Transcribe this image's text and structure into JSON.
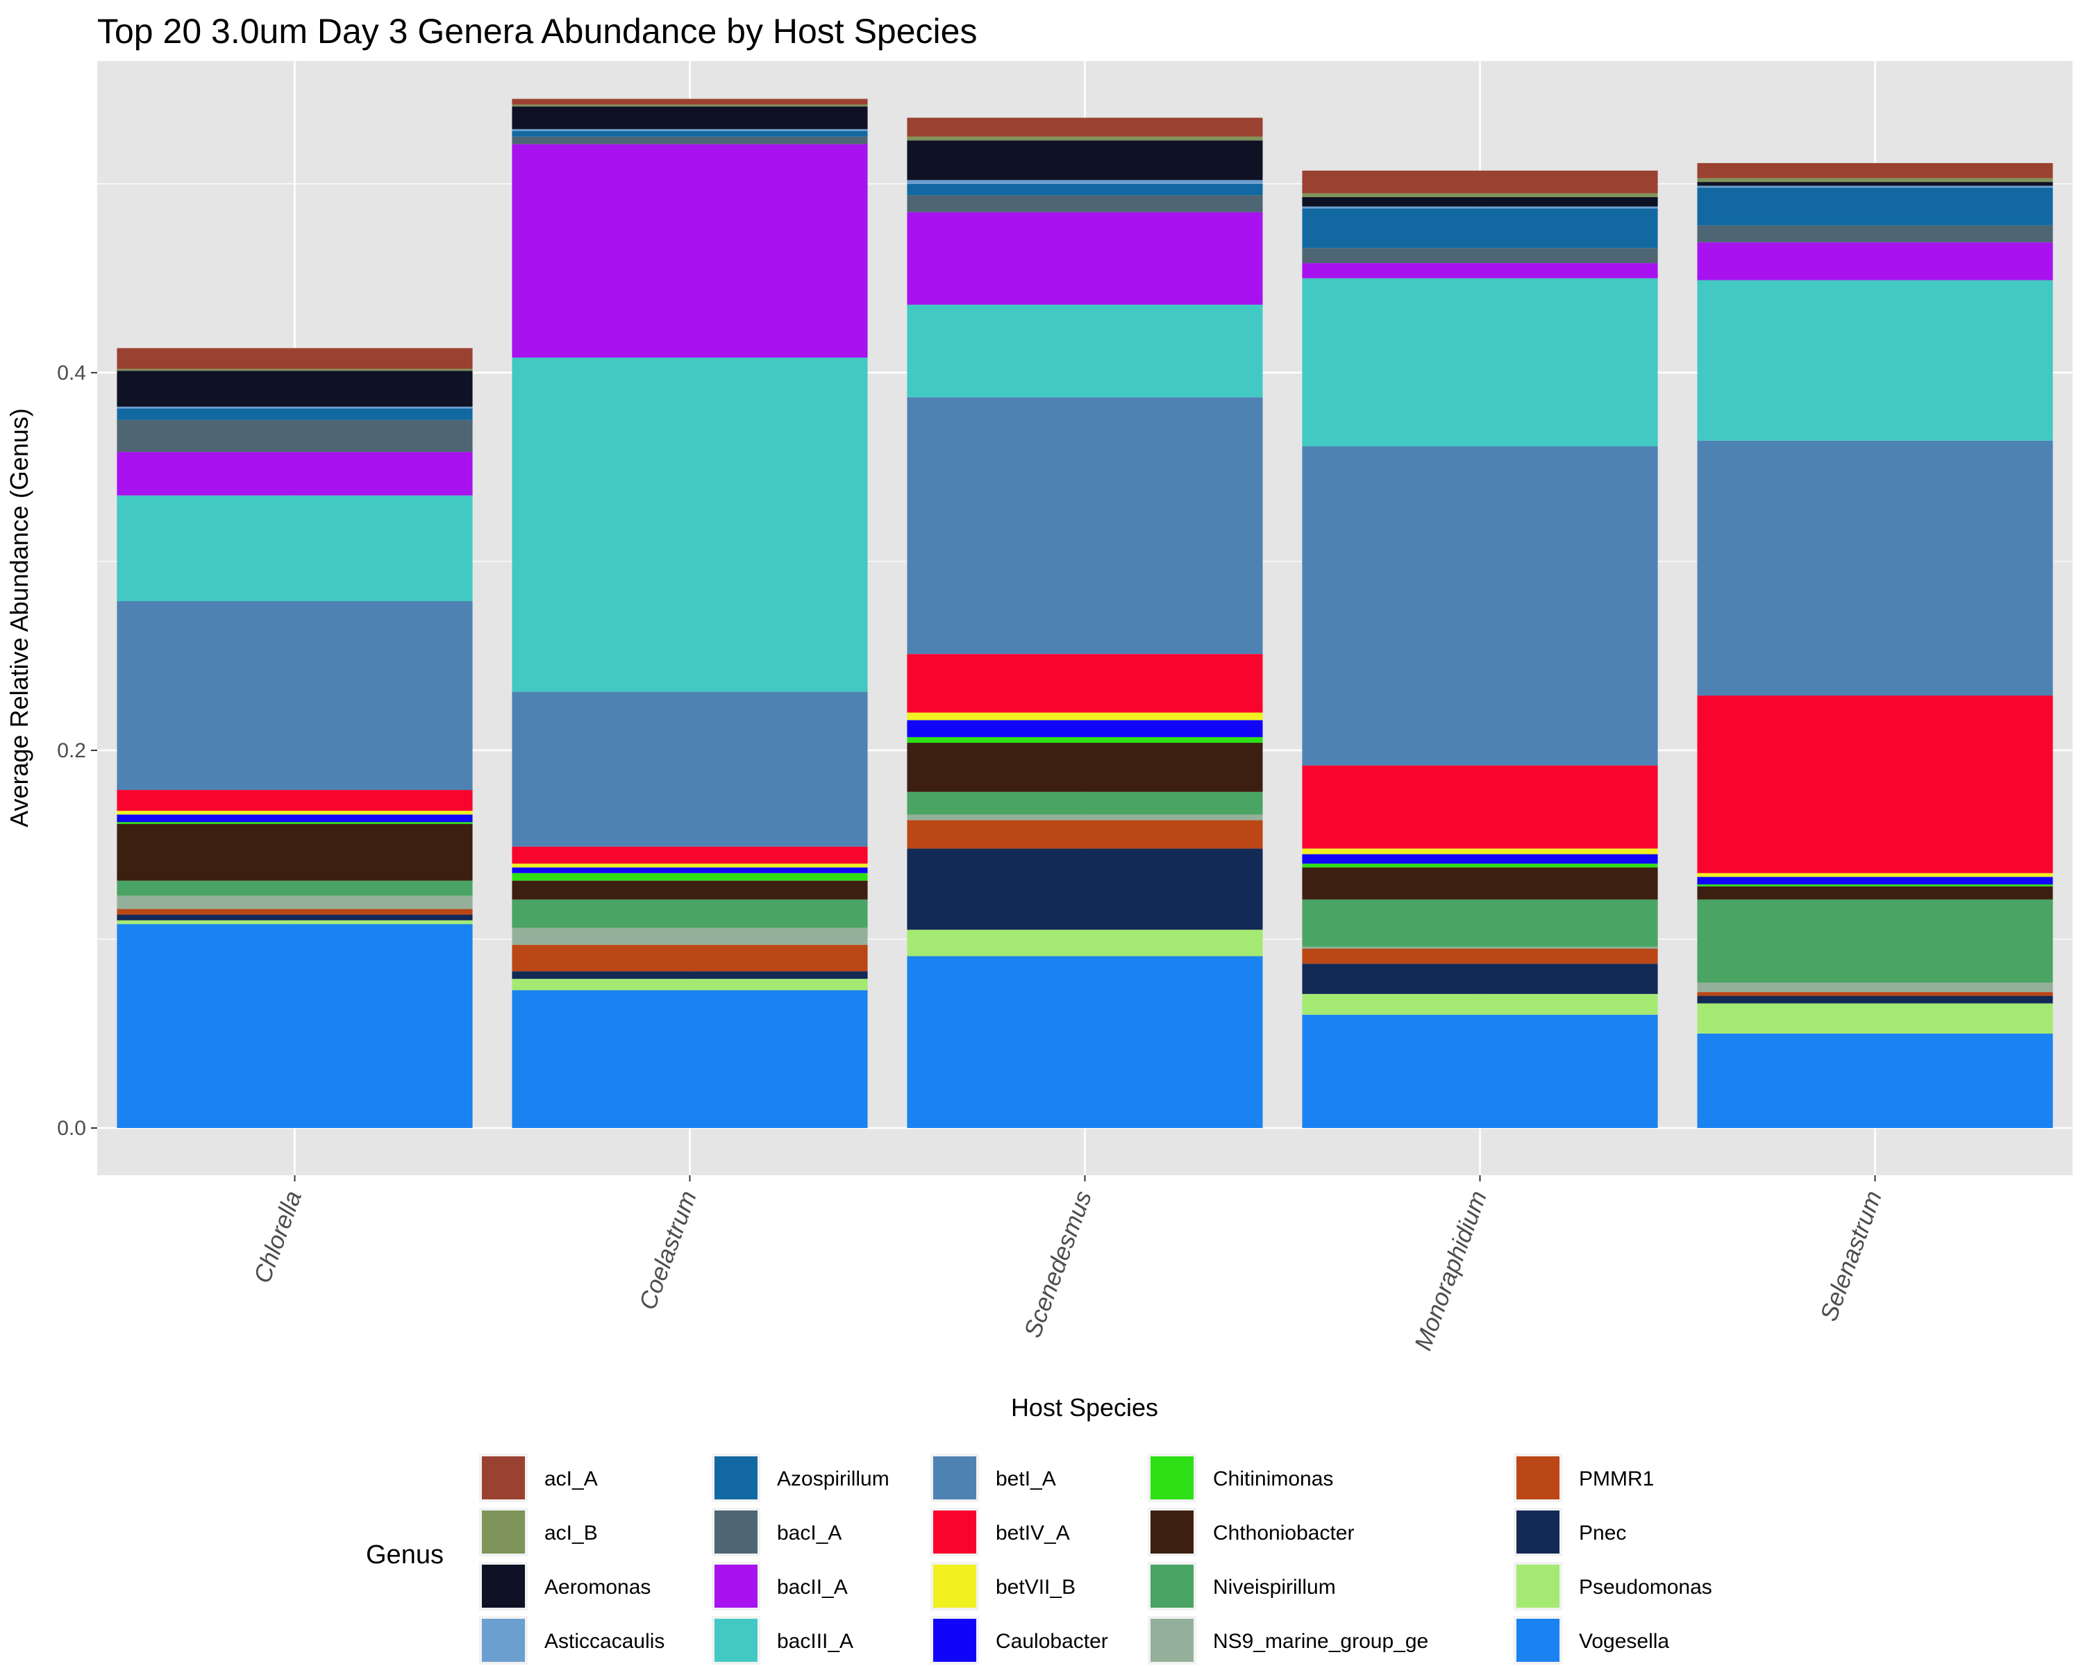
{
  "chart_data": {
    "type": "bar",
    "stacked": true,
    "title": "Top 20 3.0um Day 3 Genera Abundance by Host Species",
    "xlabel": "Host Species",
    "ylabel": "Average Relative Abundance (Genus)",
    "ylim": [
      -0.025,
      0.565
    ],
    "yticks": [
      0.0,
      0.2,
      0.4
    ],
    "ytick_labels": [
      "0.0",
      "0.2",
      "0.4"
    ],
    "grid": true,
    "legend_title": "Genus",
    "legend_position": "bottom",
    "categories": [
      "Chlorella",
      "Coelastrum",
      "Scenedesmus",
      "Monoraphidium",
      "Selenastrum"
    ],
    "stack_order": [
      "Vogesella",
      "Pseudomonas",
      "Pnec",
      "PMMR1",
      "NS9_marine_group_ge",
      "Niveispirillum",
      "Chthoniobacter",
      "Chitinimonas",
      "Caulobacter",
      "betVII_B",
      "betIV_A",
      "betI_A",
      "bacIII_A",
      "bacII_A",
      "bacI_A",
      "Azospirillum",
      "Asticcacaulis",
      "Aeromonas",
      "acI_B",
      "acI_A"
    ],
    "series": [
      {
        "name": "acI_A",
        "color": "#9a4231",
        "values": [
          0.011,
          0.003,
          0.01,
          0.012,
          0.008
        ]
      },
      {
        "name": "acI_B",
        "color": "#7f945a",
        "values": [
          0.001,
          0.001,
          0.002,
          0.002,
          0.002
        ]
      },
      {
        "name": "Aeromonas",
        "color": "#0f1225",
        "values": [
          0.019,
          0.012,
          0.021,
          0.005,
          0.002
        ]
      },
      {
        "name": "Asticcacaulis",
        "color": "#6b9fcf",
        "values": [
          0.001,
          0.001,
          0.002,
          0.001,
          0.001
        ]
      },
      {
        "name": "Azospirillum",
        "color": "#1269a1",
        "values": [
          0.006,
          0.003,
          0.006,
          0.021,
          0.02
        ]
      },
      {
        "name": "bacI_A",
        "color": "#4e6574",
        "values": [
          0.017,
          0.004,
          0.009,
          0.008,
          0.009
        ]
      },
      {
        "name": "bacII_A",
        "color": "#a712ef",
        "values": [
          0.023,
          0.113,
          0.049,
          0.008,
          0.02
        ]
      },
      {
        "name": "bacIII_A",
        "color": "#42c9c3",
        "values": [
          0.056,
          0.177,
          0.049,
          0.089,
          0.085
        ]
      },
      {
        "name": "betI_A",
        "color": "#4e82b3",
        "values": [
          0.1,
          0.082,
          0.136,
          0.169,
          0.135
        ]
      },
      {
        "name": "betIV_A",
        "color": "#f9042d",
        "values": [
          0.011,
          0.009,
          0.031,
          0.044,
          0.094
        ]
      },
      {
        "name": "betVII_B",
        "color": "#f1f121",
        "values": [
          0.002,
          0.002,
          0.004,
          0.003,
          0.002
        ]
      },
      {
        "name": "Caulobacter",
        "color": "#1004f9",
        "values": [
          0.004,
          0.003,
          0.009,
          0.005,
          0.004
        ]
      },
      {
        "name": "Chitinimonas",
        "color": "#2ee015",
        "values": [
          0.001,
          0.004,
          0.003,
          0.002,
          0.001
        ]
      },
      {
        "name": "Chthoniobacter",
        "color": "#3d1f11",
        "values": [
          0.03,
          0.01,
          0.026,
          0.017,
          0.007
        ]
      },
      {
        "name": "Niveispirillum",
        "color": "#4aa464",
        "values": [
          0.008,
          0.015,
          0.012,
          0.025,
          0.044
        ]
      },
      {
        "name": "NS9_marine_group_ge",
        "color": "#95b09a",
        "values": [
          0.007,
          0.009,
          0.003,
          0.001,
          0.005
        ]
      },
      {
        "name": "PMMR1",
        "color": "#ba4715",
        "values": [
          0.003,
          0.014,
          0.015,
          0.008,
          0.002
        ]
      },
      {
        "name": "Pnec",
        "color": "#132956",
        "values": [
          0.003,
          0.004,
          0.043,
          0.016,
          0.004
        ]
      },
      {
        "name": "Pseudomonas",
        "color": "#a4ea72",
        "values": [
          0.002,
          0.006,
          0.014,
          0.011,
          0.016
        ]
      },
      {
        "name": "Vogesella",
        "color": "#1b82f1",
        "values": [
          0.108,
          0.073,
          0.091,
          0.06,
          0.05
        ]
      }
    ]
  }
}
